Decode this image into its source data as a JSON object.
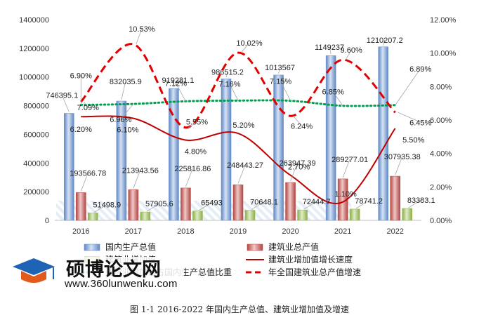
{
  "caption": "图 1-1 2016-2022 年国内生产总值、建筑业增加值及增速",
  "watermark": {
    "title": "硕博论文网",
    "url": "www.360lunwenku.com"
  },
  "colors": {
    "gdp": "#6d95cf",
    "construction_output": "#c0504d",
    "construction_added": "#9bbb59",
    "construction_added_growth": "#c00000",
    "added_share": "#00a050",
    "output_growth": "#e00000"
  },
  "chart_data": {
    "type": "bar",
    "categories": [
      "2016",
      "2017",
      "2018",
      "2019",
      "2020",
      "2021",
      "2022"
    ],
    "ylim": [
      0,
      1400000
    ],
    "yticks": [
      0,
      200000,
      400000,
      600000,
      800000,
      1000000,
      1200000,
      1400000
    ],
    "y2lim": [
      0,
      12
    ],
    "y2ticks": [
      "0.00%",
      "2.00%",
      "4.00%",
      "6.00%",
      "8.00%",
      "10.00%",
      "12.00%"
    ],
    "series": [
      {
        "name": "国内生产总值",
        "kind": "bar",
        "axis": "left",
        "values": [
          746395.1,
          832035.9,
          919281.1,
          986515.2,
          1013567,
          1149237,
          1210207.2
        ],
        "labels": [
          "746395.1",
          "832035.9",
          "919281.1",
          "986515.2",
          "1013567",
          "1149237",
          "1210207.2"
        ]
      },
      {
        "name": "建筑业总产值",
        "kind": "bar",
        "axis": "left",
        "values": [
          193566.78,
          213943.56,
          225816.86,
          248443.27,
          263947.39,
          289277.01,
          307935.38
        ],
        "labels": [
          "193566.78",
          "213943.56",
          "225816.86",
          "248443.27",
          "263947.39",
          "289277.01",
          "307935.38"
        ]
      },
      {
        "name": "建筑业增加值",
        "kind": "bar",
        "axis": "left",
        "values": [
          51498.9,
          57905.6,
          65493,
          70648.1,
          72444.7,
          78741.2,
          83383.1
        ],
        "labels": [
          "51498.9",
          "57905.6",
          "65493",
          "70648.1",
          "72444.7",
          "78741.2",
          "83383.1"
        ]
      },
      {
        "name": "建筑业增加值增长速度",
        "kind": "line",
        "axis": "right",
        "values": [
          6.2,
          6.1,
          4.8,
          5.2,
          2.7,
          1.1,
          5.5
        ],
        "labels": [
          "6.20%",
          "6.10%",
          "4.80%",
          "5.20%",
          "2.70%",
          "1.10%",
          "5.50%"
        ]
      },
      {
        "name": "建筑业增加值占国内生产总值比重",
        "kind": "line",
        "axis": "right",
        "values": [
          6.9,
          6.96,
          7.12,
          7.16,
          7.15,
          6.85,
          6.89
        ],
        "labels": [
          "6.90%",
          "6.96%",
          "7.12%",
          "7.16%",
          "7.15%",
          "6.85%",
          "6.89%"
        ]
      },
      {
        "name": "年全国建筑业总产值增速",
        "kind": "line",
        "axis": "right",
        "values": [
          7.09,
          10.53,
          5.55,
          10.02,
          6.24,
          9.6,
          6.45
        ],
        "labels": [
          "7.09%",
          "10.53%",
          "5.55%",
          "10.02%",
          "6.24%",
          "9.60%",
          "6.45%"
        ]
      }
    ],
    "legend_position": "bottom",
    "grid": false
  }
}
